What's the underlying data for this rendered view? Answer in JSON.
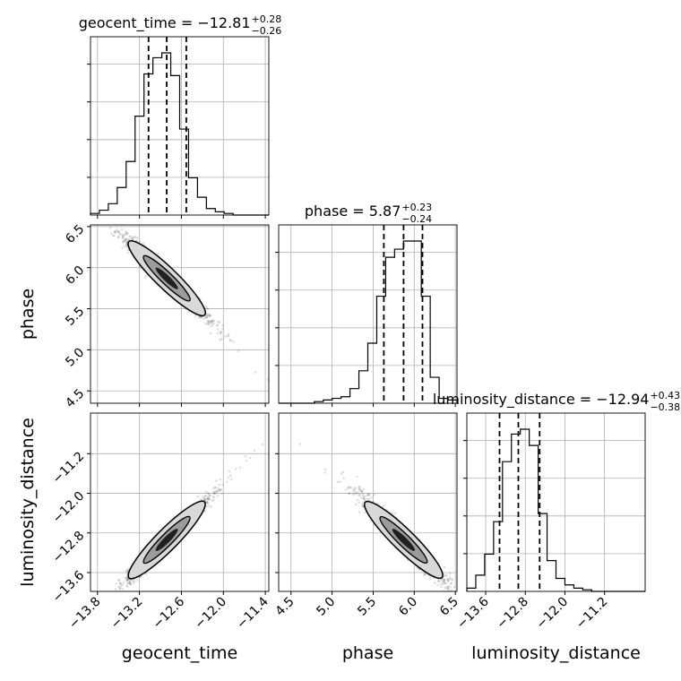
{
  "chart_data": {
    "type": "corner",
    "parameters": [
      "geocent_time",
      "phase",
      "luminosity_distance"
    ],
    "axis_labels": [
      "geocent_time",
      "phase",
      "luminosity_distance"
    ],
    "titles": [
      {
        "param": "geocent_time",
        "lead": "geocent_time = −12.81",
        "plus": "+0.28",
        "minus": "−0.26"
      },
      {
        "param": "phase",
        "lead": "phase = 5.87",
        "plus": "+0.23",
        "minus": "−0.24"
      },
      {
        "param": "luminosity_distance",
        "lead": "luminosity_distance = −12.94",
        "plus": "+0.43",
        "minus": "−0.38"
      }
    ],
    "ranges": {
      "geocent_time": [
        -13.9,
        -11.35
      ],
      "phase": [
        4.35,
        6.52
      ],
      "luminosity_distance": [
        -13.98,
        -10.38
      ]
    },
    "ticks": {
      "geocent_time": [
        {
          "v": -13.8,
          "label": "−13.8"
        },
        {
          "v": -13.2,
          "label": "−13.2"
        },
        {
          "v": -12.6,
          "label": "−12.6"
        },
        {
          "v": -12.0,
          "label": "−12.0"
        },
        {
          "v": -11.4,
          "label": "−11.4"
        }
      ],
      "phase": [
        {
          "v": 4.5,
          "label": "4.5"
        },
        {
          "v": 5.0,
          "label": "5.0"
        },
        {
          "v": 5.5,
          "label": "5.5"
        },
        {
          "v": 6.0,
          "label": "6.0"
        },
        {
          "v": 6.5,
          "label": "6.5"
        }
      ],
      "luminosity_distance": [
        {
          "v": -13.6,
          "label": "−13.6"
        },
        {
          "v": -12.8,
          "label": "−12.8"
        },
        {
          "v": -12.0,
          "label": "−12.0"
        },
        {
          "v": -11.2,
          "label": "−11.2"
        }
      ]
    },
    "quantiles": {
      "geocent_time": [
        -13.07,
        -12.81,
        -12.53
      ],
      "phase": [
        5.63,
        5.87,
        6.1
      ],
      "luminosity_distance": [
        -13.32,
        -12.94,
        -12.51
      ]
    },
    "histograms": {
      "geocent_time": {
        "bin_edges": [
          -13.9,
          -13.7725,
          -13.645,
          -13.5175,
          -13.39,
          -13.2625,
          -13.135,
          -13.0075,
          -12.88,
          -12.7525,
          -12.625,
          -12.4975,
          -12.37,
          -12.2425,
          -12.115,
          -11.9875,
          -11.86,
          -11.7325,
          -11.605,
          -11.4775,
          -11.35
        ],
        "counts": [
          0.01,
          0.03,
          0.07,
          0.17,
          0.33,
          0.61,
          0.87,
          0.97,
          1.0,
          0.86,
          0.53,
          0.23,
          0.11,
          0.04,
          0.02,
          0.01,
          0.0,
          0.0,
          0.0,
          0.0
        ]
      },
      "phase": {
        "bin_edges": [
          4.35,
          4.4585,
          4.567,
          4.6755,
          4.784,
          4.8925,
          5.001,
          5.1095,
          5.218,
          5.3265,
          5.435,
          5.5435,
          5.652,
          5.7605,
          5.869,
          5.9775,
          6.086,
          6.1945,
          6.303,
          6.4115,
          6.52
        ],
        "counts": [
          0.0,
          0.0,
          0.0,
          0.0,
          0.01,
          0.02,
          0.03,
          0.04,
          0.09,
          0.2,
          0.37,
          0.66,
          0.9,
          0.95,
          1.0,
          1.0,
          0.66,
          0.16,
          0.03,
          0.02
        ]
      },
      "luminosity_distance": {
        "bin_edges": [
          -13.98,
          -13.8,
          -13.62,
          -13.44,
          -13.26,
          -13.08,
          -12.9,
          -12.72,
          -12.54,
          -12.36,
          -12.18,
          -12.0,
          -11.82,
          -11.64,
          -11.46,
          -11.28,
          -11.1,
          -10.92,
          -10.74,
          -10.56,
          -10.38
        ],
        "counts": [
          0.02,
          0.1,
          0.23,
          0.43,
          0.8,
          0.97,
          1.0,
          0.9,
          0.48,
          0.19,
          0.08,
          0.04,
          0.02,
          0.01,
          0.0,
          0.0,
          0.0,
          0.0,
          0.0,
          0.0
        ]
      }
    },
    "grid": true
  }
}
